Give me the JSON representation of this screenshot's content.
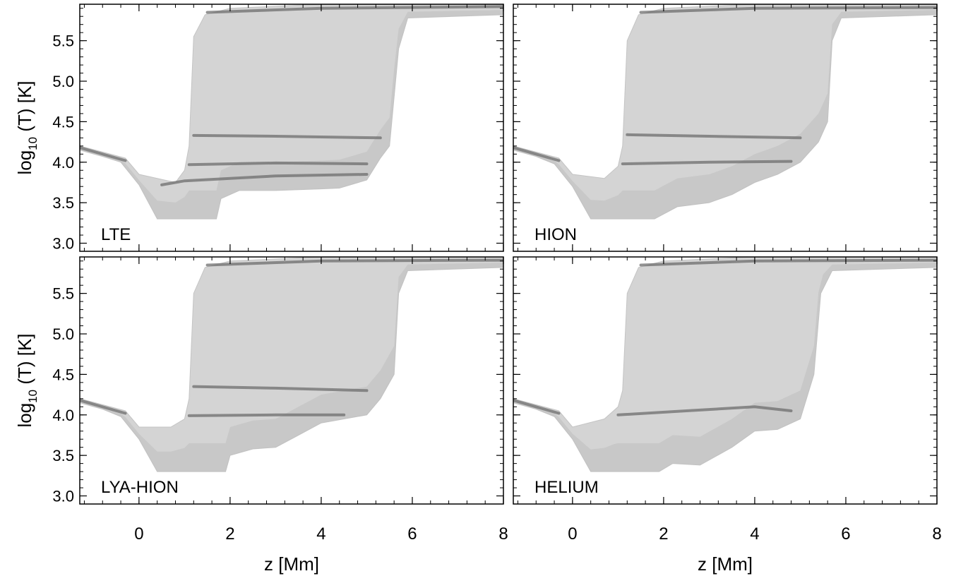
{
  "chart_data": [
    {
      "type": "area",
      "panel_label": "LTE",
      "xlabel": "z [Mm]",
      "ylabel_main": "log",
      "ylabel_sub": "10",
      "ylabel_rest": " (T) [K]",
      "xlim": [
        -1.3,
        8.0
      ],
      "ylim": [
        2.9,
        5.95
      ],
      "xticks": [
        "0",
        "2",
        "4",
        "6",
        "8"
      ],
      "yticks": [
        "3.0",
        "3.5",
        "4.0",
        "4.5",
        "5.0",
        "5.5"
      ],
      "show_xtick_labels": false,
      "show_ylabel": true,
      "envelope": {
        "lower": [
          [
            -1.3,
            4.15
          ],
          [
            -0.8,
            4.07
          ],
          [
            -0.4,
            4.0
          ],
          [
            0,
            3.72
          ],
          [
            0.4,
            3.3
          ],
          [
            1.0,
            3.3
          ],
          [
            1.7,
            3.3
          ],
          [
            1.8,
            3.55
          ],
          [
            2.2,
            3.65
          ],
          [
            3.0,
            3.65
          ],
          [
            4.0,
            3.67
          ],
          [
            4.4,
            3.68
          ],
          [
            5.0,
            3.78
          ],
          [
            5.3,
            4.05
          ],
          [
            5.5,
            4.2
          ],
          [
            5.7,
            5.4
          ],
          [
            5.9,
            5.78
          ],
          [
            8.0,
            5.82
          ]
        ],
        "upper": [
          [
            -1.3,
            4.2
          ],
          [
            -0.3,
            4.05
          ],
          [
            0,
            3.85
          ],
          [
            0.8,
            3.75
          ],
          [
            1.0,
            3.9
          ],
          [
            1.1,
            4.2
          ],
          [
            1.2,
            5.55
          ],
          [
            1.45,
            5.82
          ],
          [
            2.0,
            5.9
          ],
          [
            4.0,
            5.95
          ],
          [
            8.0,
            5.95
          ]
        ]
      },
      "dense_bands": [
        {
          "y_at_x": [
            [
              -1.3,
              4.18
            ],
            [
              -0.3,
              4.02
            ]
          ]
        },
        {
          "y_at_x": [
            [
              0.5,
              3.72
            ],
            [
              1.0,
              3.77
            ],
            [
              3.0,
              3.83
            ],
            [
              5.0,
              3.85
            ]
          ]
        },
        {
          "y_at_x": [
            [
              1.1,
              3.97
            ],
            [
              3.0,
              3.99
            ],
            [
              5.0,
              3.98
            ]
          ]
        },
        {
          "y_at_x": [
            [
              1.2,
              4.33
            ],
            [
              3.0,
              4.32
            ],
            [
              5.3,
              4.3
            ]
          ]
        },
        {
          "y_at_x": [
            [
              1.5,
              5.85
            ],
            [
              4.0,
              5.9
            ],
            [
              8.0,
              5.92
            ]
          ]
        }
      ]
    },
    {
      "type": "area",
      "panel_label": "HION",
      "xlabel": "z [Mm]",
      "ylabel_main": "",
      "ylabel_sub": "",
      "ylabel_rest": "",
      "xlim": [
        -1.3,
        8.0
      ],
      "ylim": [
        2.9,
        5.95
      ],
      "xticks": [
        "0",
        "2",
        "4",
        "6",
        "8"
      ],
      "yticks": [
        "3.0",
        "3.5",
        "4.0",
        "4.5",
        "5.0",
        "5.5"
      ],
      "show_xtick_labels": false,
      "show_ylabel": false,
      "envelope": {
        "lower": [
          [
            -1.3,
            4.15
          ],
          [
            -0.8,
            4.07
          ],
          [
            -0.4,
            3.98
          ],
          [
            0,
            3.7
          ],
          [
            0.4,
            3.3
          ],
          [
            1.0,
            3.3
          ],
          [
            1.8,
            3.3
          ],
          [
            2.3,
            3.45
          ],
          [
            3.0,
            3.5
          ],
          [
            3.5,
            3.6
          ],
          [
            4.0,
            3.75
          ],
          [
            4.5,
            3.85
          ],
          [
            5.0,
            4.0
          ],
          [
            5.4,
            4.25
          ],
          [
            5.6,
            4.5
          ],
          [
            5.7,
            5.5
          ],
          [
            5.9,
            5.78
          ],
          [
            8.0,
            5.82
          ]
        ],
        "upper": [
          [
            -1.3,
            4.2
          ],
          [
            -0.3,
            4.05
          ],
          [
            0,
            3.85
          ],
          [
            0.7,
            3.8
          ],
          [
            1.0,
            3.95
          ],
          [
            1.1,
            4.2
          ],
          [
            1.2,
            5.5
          ],
          [
            1.45,
            5.82
          ],
          [
            2.0,
            5.9
          ],
          [
            4.0,
            5.95
          ],
          [
            8.0,
            5.95
          ]
        ]
      },
      "dense_bands": [
        {
          "y_at_x": [
            [
              -1.3,
              4.18
            ],
            [
              -0.3,
              4.02
            ]
          ]
        },
        {
          "y_at_x": [
            [
              1.1,
              3.98
            ],
            [
              3.0,
              4.0
            ],
            [
              4.8,
              4.01
            ]
          ]
        },
        {
          "y_at_x": [
            [
              1.2,
              4.34
            ],
            [
              3.0,
              4.32
            ],
            [
              5.0,
              4.3
            ]
          ]
        },
        {
          "y_at_x": [
            [
              1.5,
              5.85
            ],
            [
              4.0,
              5.9
            ],
            [
              8.0,
              5.91
            ]
          ]
        }
      ]
    },
    {
      "type": "area",
      "panel_label": "LYA-HION",
      "xlabel": "z [Mm]",
      "ylabel_main": "log",
      "ylabel_sub": "10",
      "ylabel_rest": " (T) [K]",
      "xlim": [
        -1.3,
        8.0
      ],
      "ylim": [
        2.9,
        5.95
      ],
      "xticks": [
        "0",
        "2",
        "4",
        "6",
        "8"
      ],
      "yticks": [
        "3.0",
        "3.5",
        "4.0",
        "4.5",
        "5.0",
        "5.5"
      ],
      "show_xtick_labels": true,
      "show_ylabel": true,
      "envelope": {
        "lower": [
          [
            -1.3,
            4.15
          ],
          [
            -0.8,
            4.07
          ],
          [
            -0.4,
            3.98
          ],
          [
            0,
            3.7
          ],
          [
            0.4,
            3.3
          ],
          [
            1.0,
            3.3
          ],
          [
            1.9,
            3.3
          ],
          [
            2.0,
            3.5
          ],
          [
            2.5,
            3.58
          ],
          [
            3.0,
            3.6
          ],
          [
            3.5,
            3.75
          ],
          [
            4.0,
            3.9
          ],
          [
            4.5,
            3.95
          ],
          [
            5.0,
            4.0
          ],
          [
            5.3,
            4.2
          ],
          [
            5.6,
            4.5
          ],
          [
            5.7,
            5.5
          ],
          [
            5.9,
            5.78
          ],
          [
            8.0,
            5.82
          ]
        ],
        "upper": [
          [
            -1.3,
            4.2
          ],
          [
            -0.3,
            4.05
          ],
          [
            0,
            3.85
          ],
          [
            0.7,
            3.85
          ],
          [
            1.0,
            3.95
          ],
          [
            1.1,
            4.2
          ],
          [
            1.2,
            5.5
          ],
          [
            1.45,
            5.82
          ],
          [
            2.0,
            5.9
          ],
          [
            4.0,
            5.95
          ],
          [
            8.0,
            5.95
          ]
        ]
      },
      "dense_bands": [
        {
          "y_at_x": [
            [
              -1.3,
              4.18
            ],
            [
              -0.3,
              4.02
            ]
          ]
        },
        {
          "y_at_x": [
            [
              1.1,
              3.99
            ],
            [
              3.0,
              4.0
            ],
            [
              4.5,
              4.0
            ]
          ]
        },
        {
          "y_at_x": [
            [
              1.2,
              4.35
            ],
            [
              3.0,
              4.33
            ],
            [
              5.0,
              4.3
            ]
          ]
        },
        {
          "y_at_x": [
            [
              1.5,
              5.85
            ],
            [
              4.0,
              5.9
            ],
            [
              8.0,
              5.91
            ]
          ]
        }
      ]
    },
    {
      "type": "area",
      "panel_label": "HELIUM",
      "xlabel": "z [Mm]",
      "ylabel_main": "",
      "ylabel_sub": "",
      "ylabel_rest": "",
      "xlim": [
        -1.3,
        8.0
      ],
      "ylim": [
        2.9,
        5.95
      ],
      "xticks": [
        "0",
        "2",
        "4",
        "6",
        "8"
      ],
      "yticks": [
        "3.0",
        "3.5",
        "4.0",
        "4.5",
        "5.0",
        "5.5"
      ],
      "show_xtick_labels": true,
      "show_ylabel": false,
      "envelope": {
        "lower": [
          [
            -1.3,
            4.15
          ],
          [
            -0.8,
            4.07
          ],
          [
            -0.4,
            3.98
          ],
          [
            0,
            3.7
          ],
          [
            0.4,
            3.3
          ],
          [
            1.0,
            3.3
          ],
          [
            1.9,
            3.3
          ],
          [
            2.2,
            3.4
          ],
          [
            2.8,
            3.38
          ],
          [
            3.5,
            3.6
          ],
          [
            4.0,
            3.8
          ],
          [
            4.5,
            3.82
          ],
          [
            5.0,
            3.95
          ],
          [
            5.3,
            4.5
          ],
          [
            5.45,
            5.5
          ],
          [
            5.7,
            5.78
          ],
          [
            8.0,
            5.82
          ]
        ],
        "upper": [
          [
            -1.3,
            4.2
          ],
          [
            -0.3,
            4.05
          ],
          [
            0,
            3.85
          ],
          [
            0.7,
            3.95
          ],
          [
            1.0,
            4.1
          ],
          [
            1.1,
            4.3
          ],
          [
            1.2,
            5.5
          ],
          [
            1.45,
            5.82
          ],
          [
            2.0,
            5.9
          ],
          [
            4.0,
            5.95
          ],
          [
            8.0,
            5.95
          ]
        ]
      },
      "dense_bands": [
        {
          "y_at_x": [
            [
              -1.3,
              4.18
            ],
            [
              -0.3,
              4.02
            ]
          ]
        },
        {
          "y_at_x": [
            [
              1.0,
              4.0
            ],
            [
              2.5,
              4.05
            ],
            [
              4.0,
              4.1
            ],
            [
              4.8,
              4.05
            ]
          ]
        },
        {
          "y_at_x": [
            [
              1.5,
              5.85
            ],
            [
              4.0,
              5.9
            ],
            [
              8.0,
              5.91
            ]
          ]
        }
      ]
    }
  ]
}
